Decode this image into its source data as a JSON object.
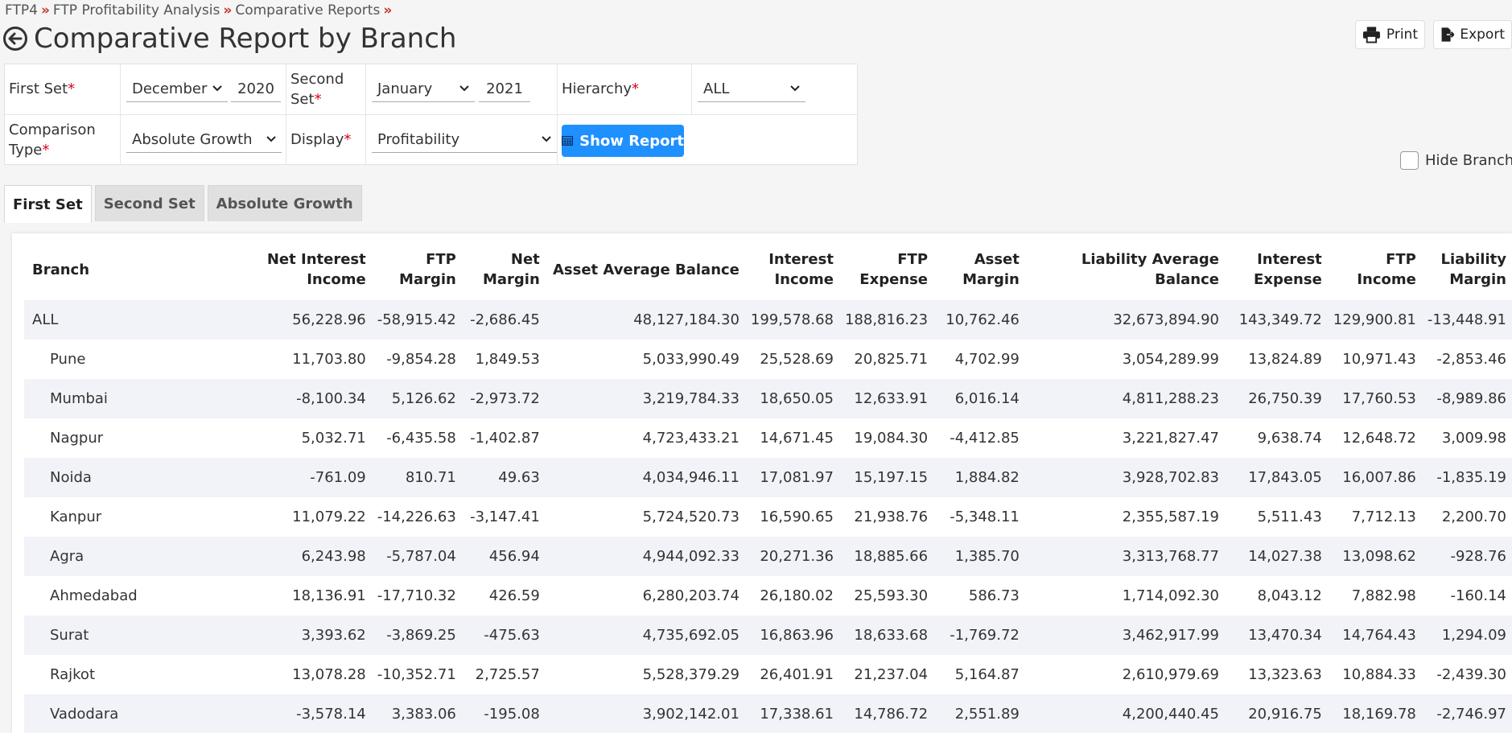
{
  "breadcrumb": [
    "FTP4",
    "FTP Profitability Analysis",
    "Comparative Reports"
  ],
  "breadcrumb_sep": "»",
  "page_title": "Comparative Report by Branch",
  "buttons": {
    "print": "Print",
    "export": "Export",
    "show_report": "Show Report"
  },
  "hide_branch_label": "Hide Branch",
  "filters": {
    "first_set_label": "First Set",
    "first_set_month": "December",
    "first_set_year": "2020",
    "second_set_label_1": "Second",
    "second_set_label_2": "Set",
    "second_set_month": "January",
    "second_set_year": "2021",
    "hierarchy_label": "Hierarchy",
    "hierarchy_value": "ALL",
    "comparison_type_label_1": "Comparison",
    "comparison_type_label_2": "Type",
    "comparison_type_value": "Absolute Growth",
    "display_label": "Display",
    "display_value": "Profitability",
    "required_mark": "*"
  },
  "tabs": [
    "First Set",
    "Second Set",
    "Absolute Growth"
  ],
  "table": {
    "headers": [
      [
        "Branch",
        ""
      ],
      [
        "Net Interest",
        "Income"
      ],
      [
        "FTP",
        "Margin"
      ],
      [
        "Net",
        "Margin"
      ],
      [
        "Asset Average Balance",
        ""
      ],
      [
        "Interest",
        "Income"
      ],
      [
        "FTP",
        "Expense"
      ],
      [
        "Asset",
        "Margin"
      ],
      [
        "Liability Average Balance",
        ""
      ],
      [
        "Interest",
        "Expense"
      ],
      [
        "FTP",
        "Income"
      ],
      [
        "Liability",
        "Margin"
      ]
    ],
    "rows": [
      [
        "ALL",
        "56,228.96",
        "-58,915.42",
        "-2,686.45",
        "48,127,184.30",
        "199,578.68",
        "188,816.23",
        "10,762.46",
        "32,673,894.90",
        "143,349.72",
        "129,900.81",
        "-13,448.91"
      ],
      [
        "Pune",
        "11,703.80",
        "-9,854.28",
        "1,849.53",
        "5,033,990.49",
        "25,528.69",
        "20,825.71",
        "4,702.99",
        "3,054,289.99",
        "13,824.89",
        "10,971.43",
        "-2,853.46"
      ],
      [
        "Mumbai",
        "-8,100.34",
        "5,126.62",
        "-2,973.72",
        "3,219,784.33",
        "18,650.05",
        "12,633.91",
        "6,016.14",
        "4,811,288.23",
        "26,750.39",
        "17,760.53",
        "-8,989.86"
      ],
      [
        "Nagpur",
        "5,032.71",
        "-6,435.58",
        "-1,402.87",
        "4,723,433.21",
        "14,671.45",
        "19,084.30",
        "-4,412.85",
        "3,221,827.47",
        "9,638.74",
        "12,648.72",
        "3,009.98"
      ],
      [
        "Noida",
        "-761.09",
        "810.71",
        "49.63",
        "4,034,946.11",
        "17,081.97",
        "15,197.15",
        "1,884.82",
        "3,928,702.83",
        "17,843.05",
        "16,007.86",
        "-1,835.19"
      ],
      [
        "Kanpur",
        "11,079.22",
        "-14,226.63",
        "-3,147.41",
        "5,724,520.73",
        "16,590.65",
        "21,938.76",
        "-5,348.11",
        "2,355,587.19",
        "5,511.43",
        "7,712.13",
        "2,200.70"
      ],
      [
        "Agra",
        "6,243.98",
        "-5,787.04",
        "456.94",
        "4,944,092.33",
        "20,271.36",
        "18,885.66",
        "1,385.70",
        "3,313,768.77",
        "14,027.38",
        "13,098.62",
        "-928.76"
      ],
      [
        "Ahmedabad",
        "18,136.91",
        "-17,710.32",
        "426.59",
        "6,280,203.74",
        "26,180.02",
        "25,593.30",
        "586.73",
        "1,714,092.30",
        "8,043.12",
        "7,882.98",
        "-160.14"
      ],
      [
        "Surat",
        "3,393.62",
        "-3,869.25",
        "-475.63",
        "4,735,692.05",
        "16,863.96",
        "18,633.68",
        "-1,769.72",
        "3,462,917.99",
        "13,470.34",
        "14,764.43",
        "1,294.09"
      ],
      [
        "Rajkot",
        "13,078.28",
        "-10,352.71",
        "2,725.57",
        "5,528,379.29",
        "26,401.91",
        "21,237.04",
        "5,164.87",
        "2,610,979.69",
        "13,323.63",
        "10,884.33",
        "-2,439.30"
      ],
      [
        "Vadodara",
        "-3,578.14",
        "3,383.06",
        "-195.08",
        "3,902,142.01",
        "17,338.61",
        "14,786.72",
        "2,551.89",
        "4,200,440.45",
        "20,916.75",
        "18,169.78",
        "-2,746.97"
      ]
    ]
  }
}
